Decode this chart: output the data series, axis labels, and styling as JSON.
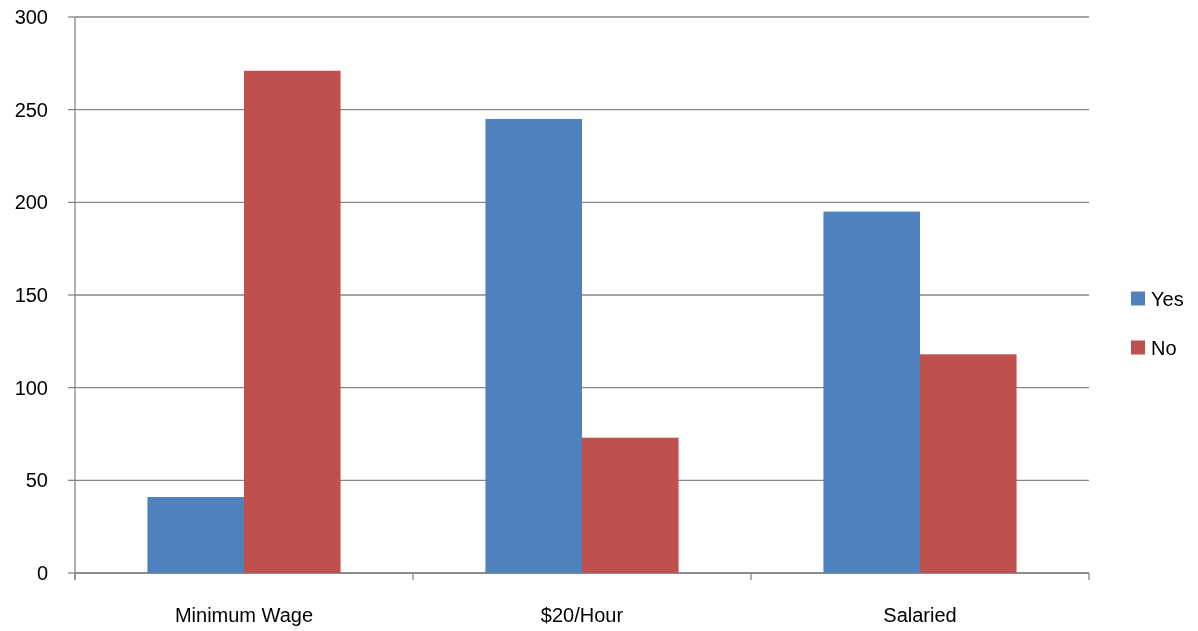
{
  "chart_data": {
    "type": "bar",
    "categories": [
      "Minimum Wage",
      "$20/Hour",
      "Salaried"
    ],
    "series": [
      {
        "name": "Yes",
        "color": "#4f81bd",
        "values": [
          41,
          245,
          195
        ]
      },
      {
        "name": "No",
        "color": "#c0504d",
        "values": [
          271,
          73,
          118
        ]
      }
    ],
    "ylim": [
      0,
      300
    ],
    "yticks": [
      0,
      50,
      100,
      150,
      200,
      250,
      300
    ],
    "grid": "y",
    "legend": "right"
  }
}
